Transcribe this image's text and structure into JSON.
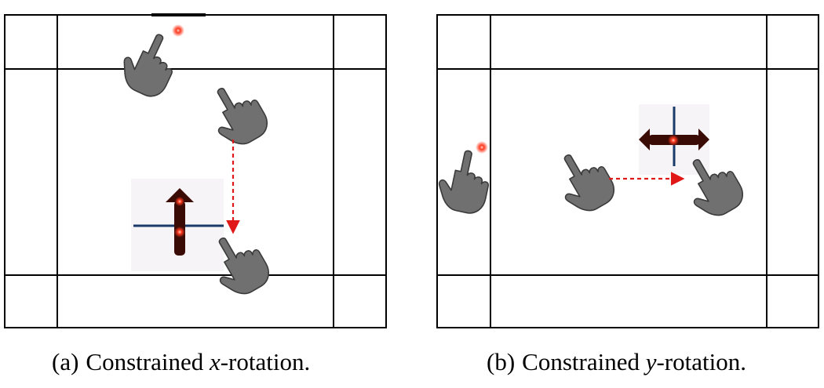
{
  "captions": {
    "a": {
      "label": "(a)",
      "before": "Constrained ",
      "axis": "x",
      "after": "-rotation."
    },
    "b": {
      "label": "(b)",
      "before": "Constrained ",
      "axis": "y",
      "after": "-rotation."
    }
  },
  "icons": {
    "pointer": "pointing-hand-icon",
    "touch": "touch-point-icon",
    "gizmo_x": "x-rotation-gizmo-icon",
    "gizmo_y": "y-rotation-gizmo-icon"
  },
  "colors": {
    "frame_line": "#000000",
    "hand_fill": "#707070",
    "hand_outline": "#3a3a3a",
    "drag_arrow": "#e01818",
    "touch_point": "#e02010",
    "gizmo_body": "#3a0a05",
    "gizmo_axis": "#1a3a6a",
    "gizmo_glow": "#ff3a20"
  }
}
